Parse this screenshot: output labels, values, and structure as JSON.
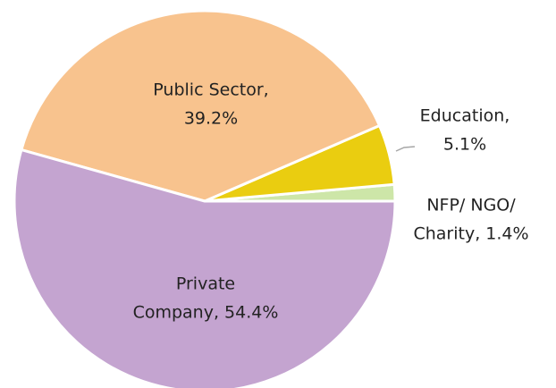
{
  "chart_data": {
    "type": "pie",
    "labels": [
      [
        "NFP/ NGO/",
        "Charity, 1.4%"
      ],
      [
        "Education,",
        "5.1%"
      ],
      [
        "Public Sector,",
        "39.2%"
      ],
      [
        "Private",
        "Company, 54.4%"
      ]
    ],
    "values": [
      1.4,
      5.1,
      39.2,
      54.4
    ],
    "colors": [
      "#cde6a8",
      "#eacd10",
      "#f8c38e",
      "#c4a4d0"
    ]
  }
}
